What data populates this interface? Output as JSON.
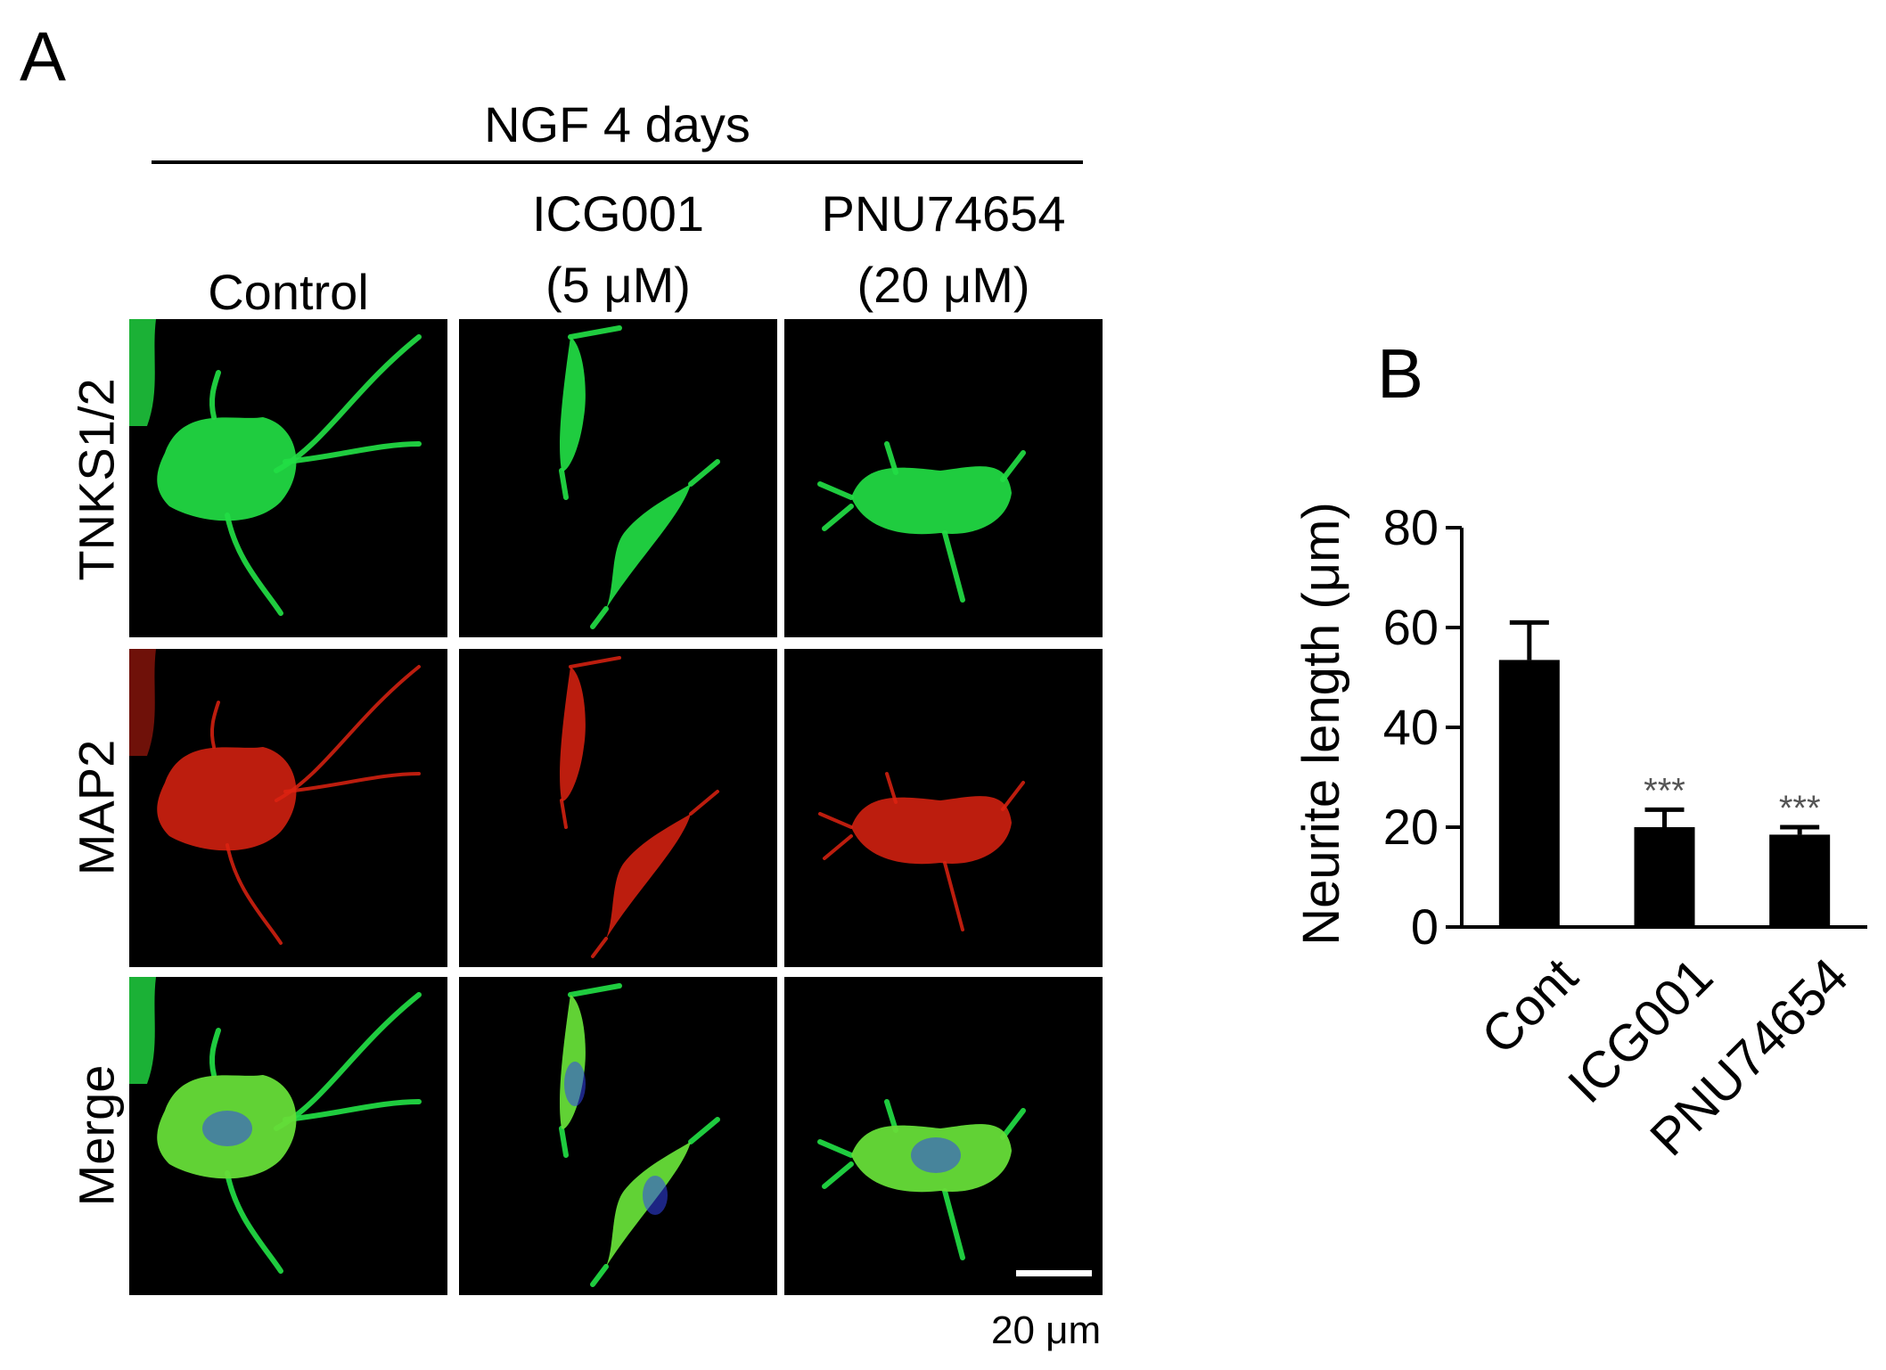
{
  "figure": {
    "panel_a": {
      "letter": "A",
      "header": "NGF 4 days",
      "columns": [
        {
          "line1": "",
          "line2": "Control"
        },
        {
          "line1": "ICG001",
          "line2": "(5 μM)"
        },
        {
          "line1": "PNU74654",
          "line2": "(20 μM)"
        }
      ],
      "rows": [
        "TNKS1/2",
        "MAP2",
        "Merge"
      ],
      "channel_colors": {
        "TNKS1/2": "#22dd44",
        "MAP2": "#dd2211",
        "nuclei": "#3344ee"
      },
      "scale_bar_label": "20 μm"
    },
    "panel_b": {
      "letter": "B"
    }
  },
  "chart_data": {
    "type": "bar",
    "categories": [
      "Cont",
      "ICG001",
      "PNU74654"
    ],
    "values": [
      53.5,
      20,
      18.5
    ],
    "errors": [
      7.5,
      3.5,
      1.5
    ],
    "significance": [
      "",
      "***",
      "***"
    ],
    "ylabel": "Neurite length (μm)",
    "xlabel": "",
    "ylim": [
      0,
      80
    ],
    "yticks": [
      0,
      20,
      40,
      60,
      80
    ],
    "bar_color": "#000000"
  }
}
